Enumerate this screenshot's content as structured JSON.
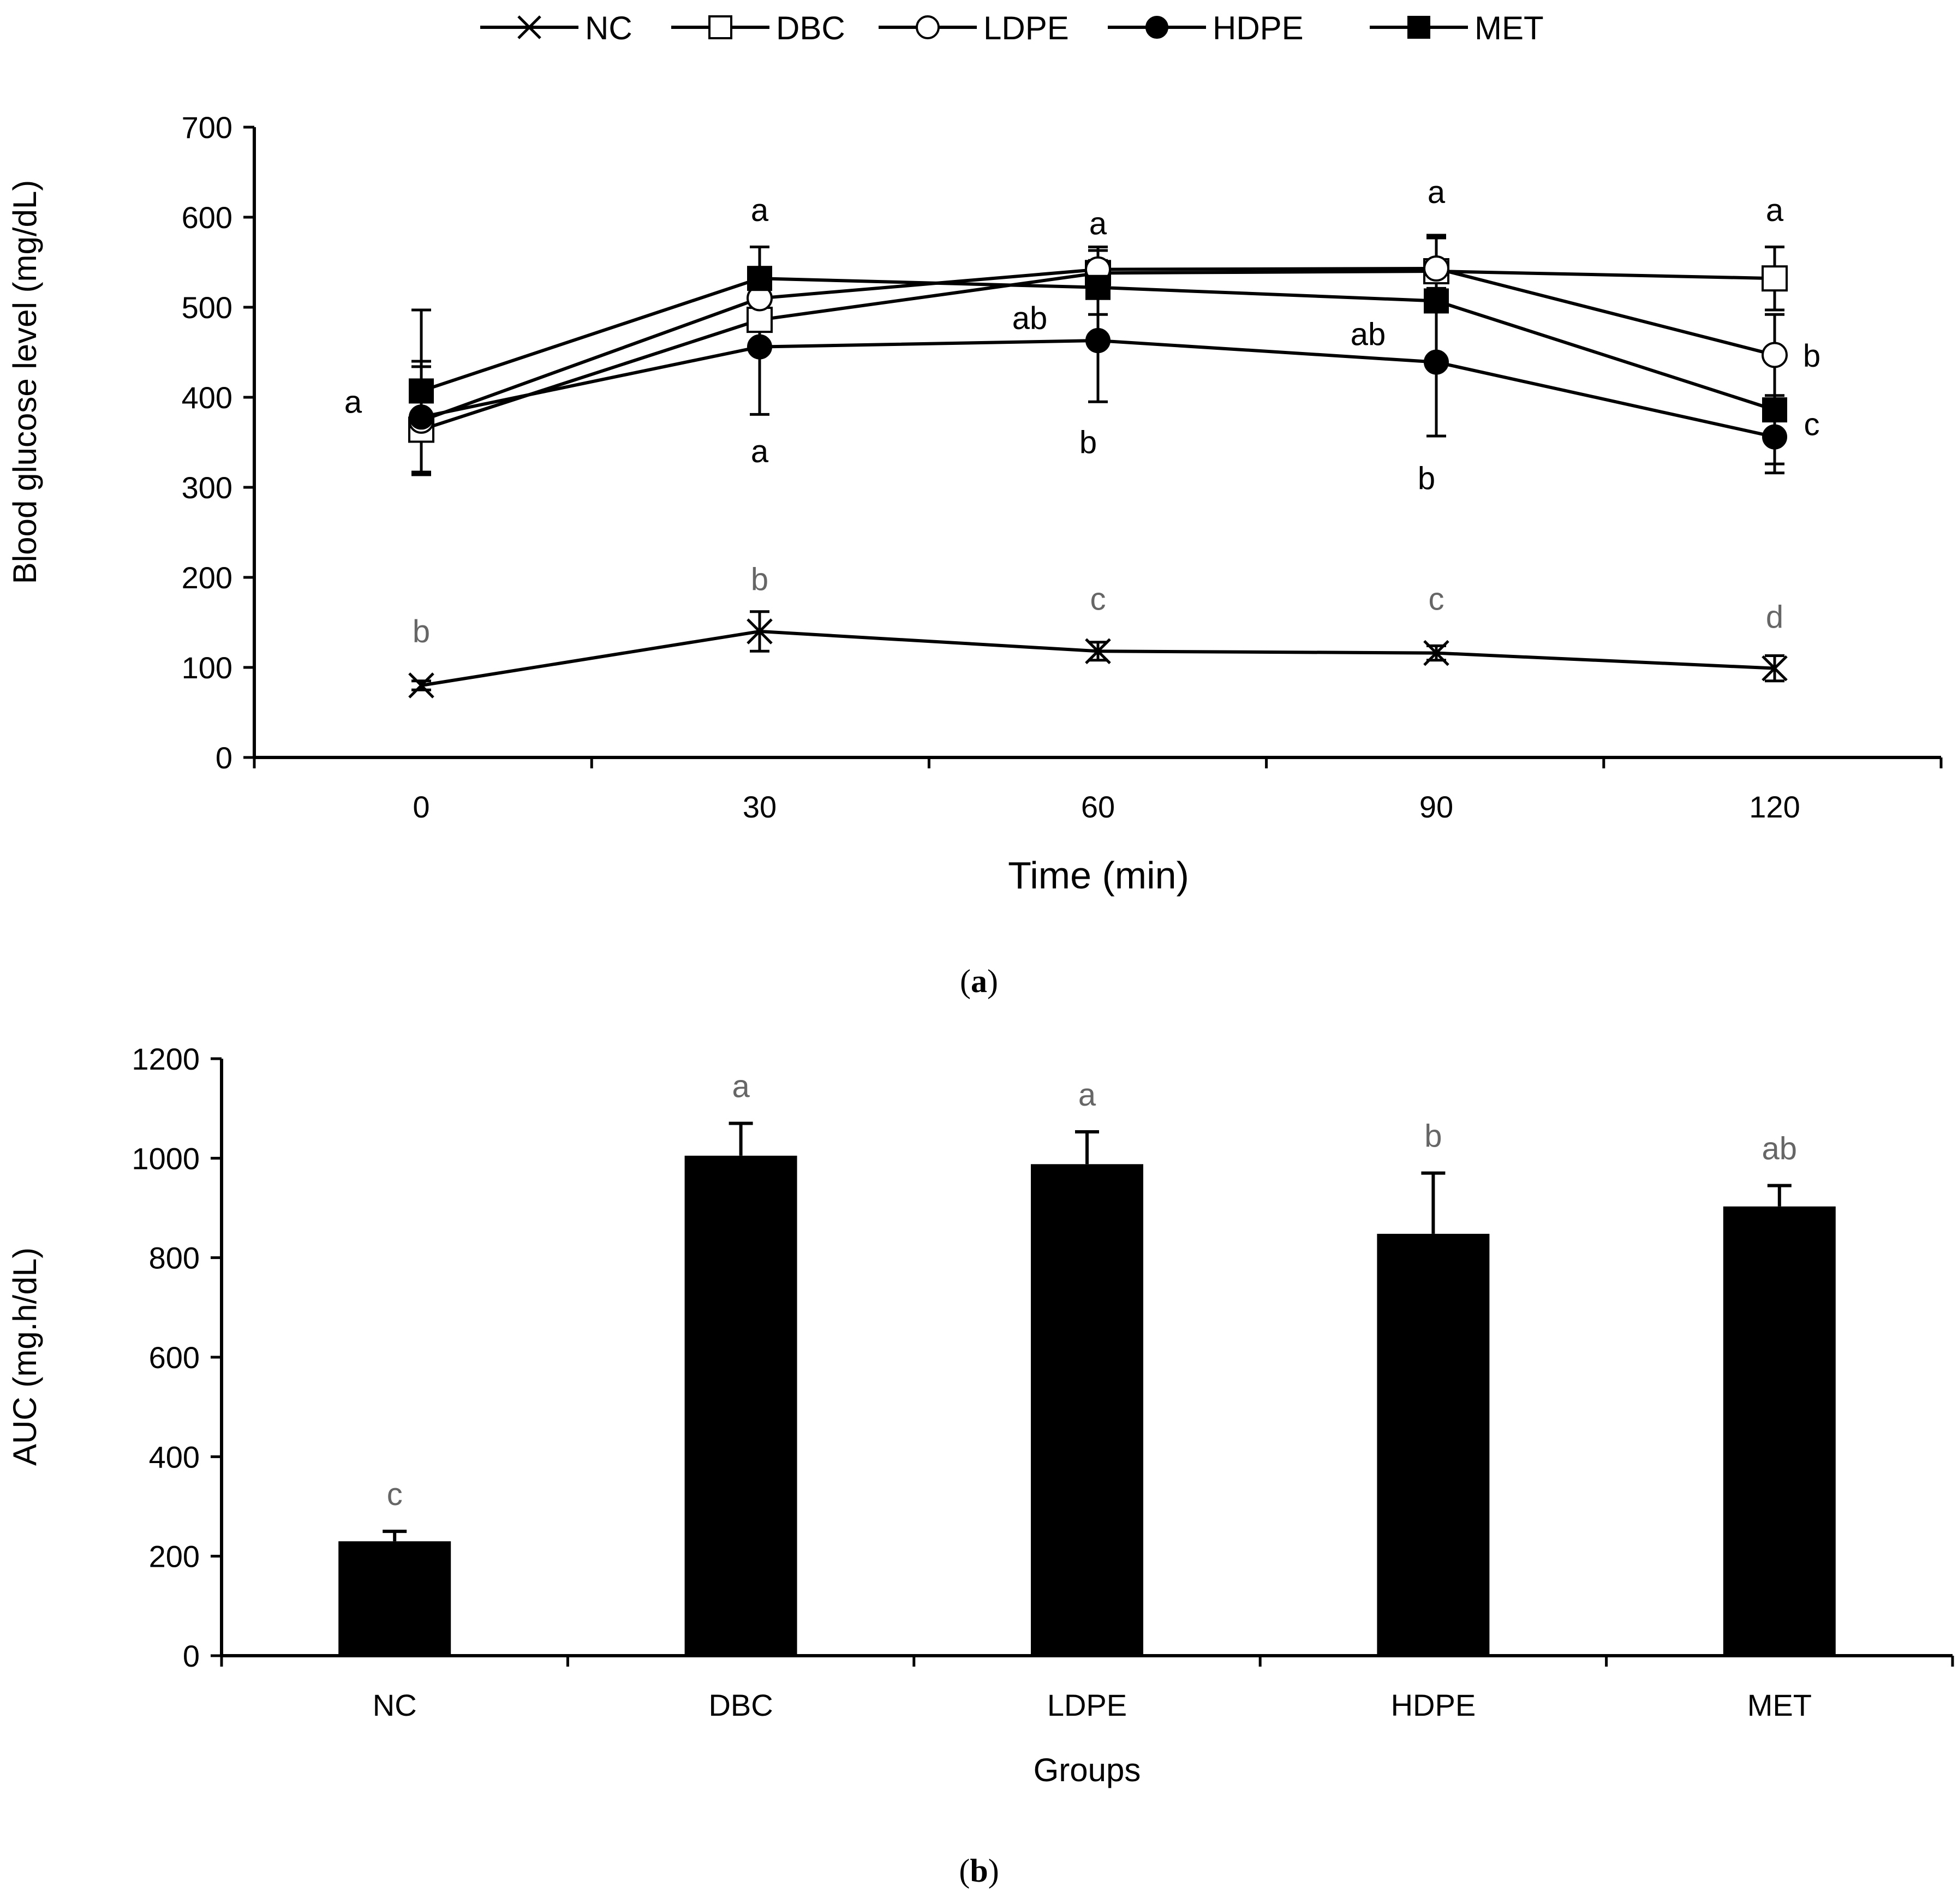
{
  "legend": {
    "entries": [
      {
        "name": "NC",
        "marker": "x-icon"
      },
      {
        "name": "DBC",
        "marker": "open-square-icon"
      },
      {
        "name": "LDPE",
        "marker": "open-circle-icon"
      },
      {
        "name": "HDPE",
        "marker": "filled-circle-icon"
      },
      {
        "name": "MET",
        "marker": "filled-square-icon"
      }
    ]
  },
  "panel_labels": {
    "a": "a",
    "b": "b"
  },
  "chart_data": [
    {
      "type": "line",
      "title": "",
      "xlabel": "Time (min)",
      "ylabel": "Blood glucose level (mg/dL)",
      "x": [
        0,
        30,
        60,
        90,
        120
      ],
      "xticks": [
        "0",
        "30",
        "60",
        "90",
        "120"
      ],
      "ylim": [
        0,
        700
      ],
      "yticks": [
        0,
        100,
        200,
        300,
        400,
        500,
        600,
        700
      ],
      "grid": false,
      "legend_position": "top",
      "series": [
        {
          "name": "NC",
          "marker": "x",
          "values": [
            80,
            140,
            118,
            116,
            99
          ],
          "errors": [
            5,
            22,
            10,
            8,
            14
          ]
        },
        {
          "name": "DBC",
          "marker": "open-square",
          "values": [
            364,
            486,
            538,
            540,
            532
          ],
          "errors": [
            50,
            30,
            25,
            40,
            35
          ]
        },
        {
          "name": "LDPE",
          "marker": "open-circle",
          "values": [
            374,
            510,
            542,
            543,
            447
          ],
          "errors": [
            60,
            30,
            25,
            35,
            45
          ]
        },
        {
          "name": "HDPE",
          "marker": "filled-circle",
          "values": [
            378,
            456,
            463,
            439,
            356
          ],
          "errors": [
            62,
            75,
            68,
            82,
            40
          ]
        },
        {
          "name": "MET",
          "marker": "filled-square",
          "values": [
            407,
            532,
            522,
            507,
            386
          ],
          "errors": [
            90,
            35,
            30,
            70,
            60
          ]
        }
      ],
      "annotations": [
        {
          "text": "a",
          "x": 0,
          "y": 395,
          "color": "#000000",
          "side": "left"
        },
        {
          "text": "b",
          "x": 0,
          "y": 140,
          "color": "#666666"
        },
        {
          "text": "a",
          "x": 30,
          "y": 608,
          "color": "#000000"
        },
        {
          "text": "a",
          "x": 30,
          "y": 340,
          "color": "#000000"
        },
        {
          "text": "b",
          "x": 30,
          "y": 198,
          "color": "#666666"
        },
        {
          "text": "a",
          "x": 60,
          "y": 593,
          "color": "#000000"
        },
        {
          "text": "ab",
          "x": 60,
          "y": 488,
          "color": "#000000",
          "side": "left"
        },
        {
          "text": "b",
          "x": 60,
          "y": 350,
          "color": "#000000",
          "side": "leftish"
        },
        {
          "text": "c",
          "x": 60,
          "y": 176,
          "color": "#666666"
        },
        {
          "text": "a",
          "x": 90,
          "y": 628,
          "color": "#000000"
        },
        {
          "text": "ab",
          "x": 90,
          "y": 470,
          "color": "#000000",
          "side": "left"
        },
        {
          "text": "b",
          "x": 90,
          "y": 310,
          "color": "#000000",
          "side": "leftish"
        },
        {
          "text": "c",
          "x": 90,
          "y": 176,
          "color": "#666666"
        },
        {
          "text": "a",
          "x": 120,
          "y": 608,
          "color": "#000000"
        },
        {
          "text": "b",
          "x": 120,
          "y": 446,
          "color": "#000000",
          "side": "right"
        },
        {
          "text": "c",
          "x": 120,
          "y": 370,
          "color": "#000000",
          "side": "right"
        },
        {
          "text": "d",
          "x": 120,
          "y": 156,
          "color": "#666666"
        }
      ]
    },
    {
      "type": "bar",
      "title": "",
      "xlabel": "Groups",
      "ylabel": "AUC (mg.h/dL)",
      "categories": [
        "NC",
        "DBC",
        "LDPE",
        "HDPE",
        "MET"
      ],
      "values": [
        230,
        1005,
        988,
        848,
        903
      ],
      "errors": [
        20,
        65,
        65,
        122,
        42
      ],
      "ylim": [
        0,
        1200
      ],
      "yticks": [
        0,
        200,
        400,
        600,
        800,
        1000,
        1200
      ],
      "grid": false,
      "bar_color": "#000000",
      "annotations": [
        {
          "text": "c",
          "category": "NC",
          "color": "#666666"
        },
        {
          "text": "a",
          "category": "DBC",
          "color": "#666666"
        },
        {
          "text": "a",
          "category": "LDPE",
          "color": "#666666"
        },
        {
          "text": "b",
          "category": "HDPE",
          "color": "#666666"
        },
        {
          "text": "ab",
          "category": "MET",
          "color": "#666666"
        }
      ]
    }
  ]
}
